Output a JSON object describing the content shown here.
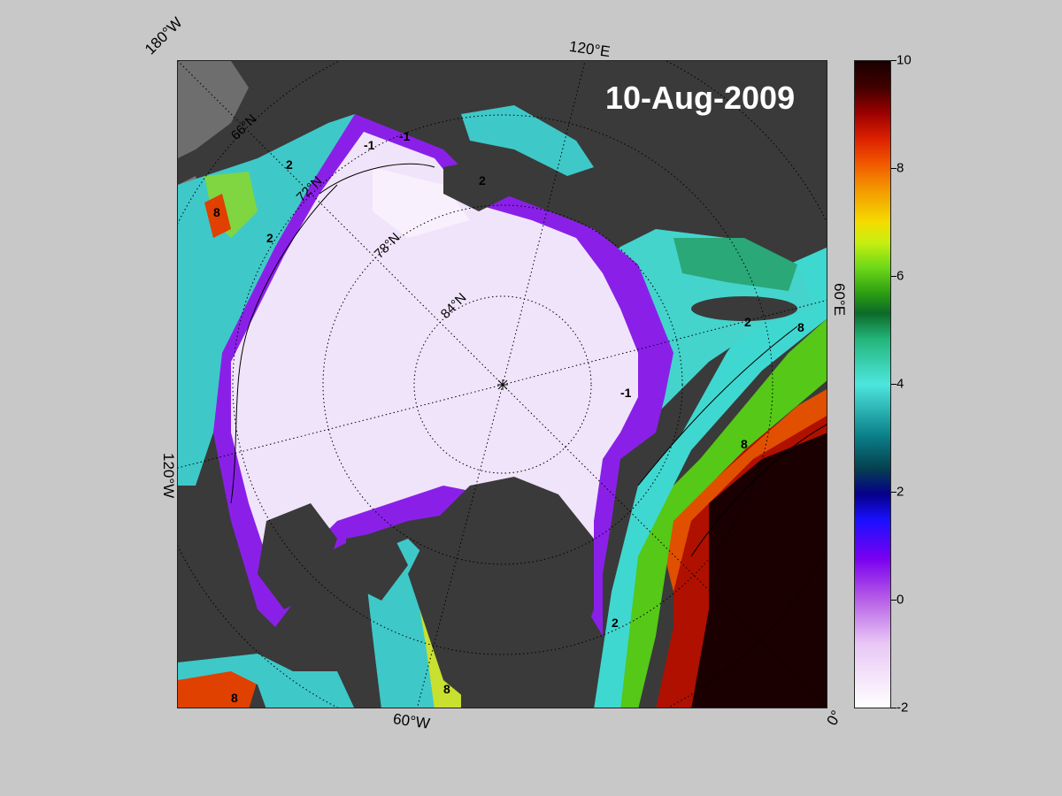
{
  "title": {
    "date": "10-Aug-2009"
  },
  "longitude_labels": {
    "w180": "180°W",
    "e120": "120°E",
    "e60": "60°E",
    "zero": "0°",
    "w60": "60°W",
    "w120": "120°W"
  },
  "latitude_labels": [
    "66°N",
    "72°N",
    "78°N",
    "84°N"
  ],
  "contour_labels": [
    "-1",
    "2",
    "8"
  ],
  "colorbar": {
    "min": -2,
    "max": 10,
    "ticks": [
      "10",
      "8",
      "6",
      "4",
      "2",
      "0",
      "-2"
    ]
  },
  "colors": {
    "background": "#c8c8c8",
    "land": "#3a3a3a",
    "ice": "#f3e8fb",
    "ice_edge": "#8a2be2",
    "warm_water": "#1a0000",
    "text": "#ffffff"
  }
}
